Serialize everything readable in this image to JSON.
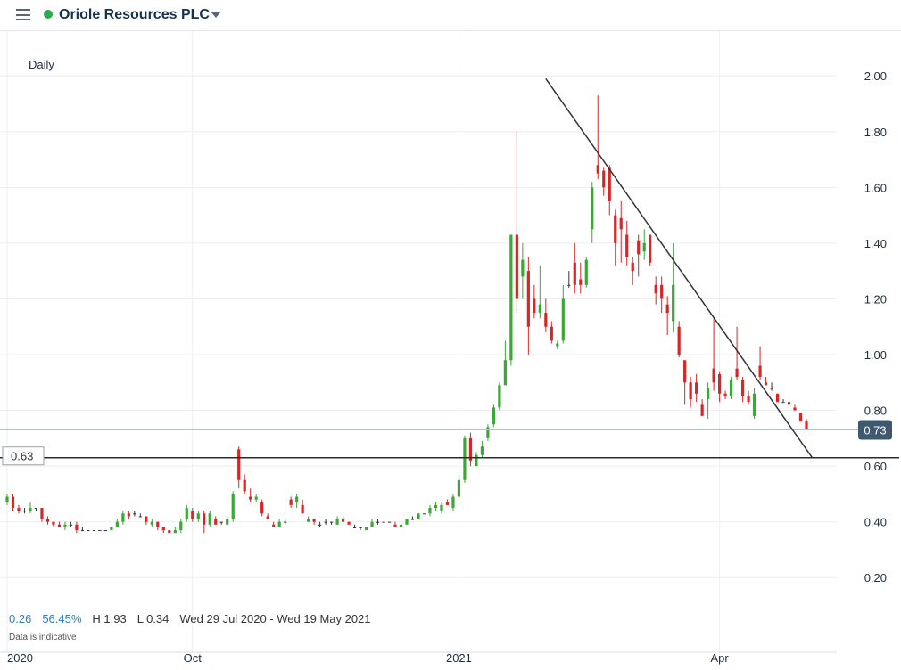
{
  "header": {
    "title": "Oriole Resources PLC",
    "menu_icon": "hamburger-menu-icon",
    "status_color": "#2fa84f"
  },
  "chart_meta": {
    "interval": "Daily"
  },
  "footer": {
    "change": "0.26",
    "change_pct": "56.45%",
    "high": "H 1.93",
    "low": "L 0.34",
    "range": "Wed 29 Jul 2020 - Wed 19 May 2021",
    "note": "Data is indicative"
  },
  "chart_data": {
    "type": "candlestick",
    "y_ticks": [
      "2.00",
      "1.80",
      "1.60",
      "1.40",
      "1.20",
      "1.00",
      "0.80",
      "0.60",
      "0.40",
      "0.20"
    ],
    "ylim": [
      0.13,
      2.15
    ],
    "x_labels": [
      {
        "label": "2020",
        "day": 0
      },
      {
        "label": "Oct",
        "day": 64
      },
      {
        "label": "2021",
        "day": 156
      },
      {
        "label": "Apr",
        "day": 246
      }
    ],
    "xlim": [
      0,
      305
    ],
    "current_price": {
      "label": "0.73",
      "value": 0.73
    },
    "horizontal_level": {
      "label": "0.63",
      "value": 0.63
    },
    "trendline": [
      [
        186,
        1.99
      ],
      [
        278,
        0.63
      ]
    ],
    "colors": {
      "up": "#3aa835",
      "down": "#d62728",
      "flat": "#333333",
      "price_tag": "#3f5870"
    },
    "candles": [
      [
        0,
        0.47,
        0.5,
        0.46,
        0.49
      ],
      [
        2,
        0.49,
        0.5,
        0.44,
        0.45
      ],
      [
        4,
        0.45,
        0.46,
        0.43,
        0.44
      ],
      [
        6,
        0.44,
        0.45,
        0.43,
        0.44
      ],
      [
        8,
        0.44,
        0.47,
        0.43,
        0.45
      ],
      [
        10,
        0.45,
        0.45,
        0.44,
        0.45
      ],
      [
        12,
        0.45,
        0.45,
        0.4,
        0.41
      ],
      [
        14,
        0.41,
        0.42,
        0.39,
        0.4
      ],
      [
        16,
        0.4,
        0.4,
        0.38,
        0.39
      ],
      [
        18,
        0.39,
        0.4,
        0.38,
        0.38
      ],
      [
        20,
        0.38,
        0.4,
        0.37,
        0.39
      ],
      [
        22,
        0.39,
        0.4,
        0.38,
        0.39
      ],
      [
        24,
        0.39,
        0.4,
        0.36,
        0.37
      ],
      [
        26,
        0.37,
        0.38,
        0.37,
        0.37
      ],
      [
        28,
        0.37,
        0.37,
        0.37,
        0.37
      ],
      [
        30,
        0.37,
        0.37,
        0.37,
        0.37
      ],
      [
        32,
        0.37,
        0.37,
        0.37,
        0.37
      ],
      [
        34,
        0.37,
        0.37,
        0.37,
        0.37
      ],
      [
        36,
        0.37,
        0.38,
        0.37,
        0.38
      ],
      [
        38,
        0.38,
        0.41,
        0.38,
        0.4
      ],
      [
        40,
        0.4,
        0.44,
        0.39,
        0.43
      ],
      [
        42,
        0.43,
        0.44,
        0.41,
        0.42
      ],
      [
        44,
        0.43,
        0.44,
        0.42,
        0.43
      ],
      [
        46,
        0.42,
        0.43,
        0.42,
        0.42
      ],
      [
        48,
        0.42,
        0.42,
        0.39,
        0.4
      ],
      [
        50,
        0.39,
        0.41,
        0.38,
        0.4
      ],
      [
        52,
        0.4,
        0.4,
        0.37,
        0.38
      ],
      [
        54,
        0.38,
        0.38,
        0.36,
        0.37
      ],
      [
        56,
        0.37,
        0.37,
        0.36,
        0.36
      ],
      [
        58,
        0.36,
        0.38,
        0.36,
        0.37
      ],
      [
        60,
        0.37,
        0.41,
        0.36,
        0.4
      ],
      [
        62,
        0.41,
        0.46,
        0.4,
        0.45
      ],
      [
        64,
        0.44,
        0.45,
        0.4,
        0.41
      ],
      [
        66,
        0.41,
        0.44,
        0.4,
        0.43
      ],
      [
        68,
        0.43,
        0.44,
        0.36,
        0.39
      ],
      [
        70,
        0.39,
        0.44,
        0.38,
        0.43
      ],
      [
        72,
        0.41,
        0.42,
        0.39,
        0.39
      ],
      [
        74,
        0.4,
        0.4,
        0.39,
        0.4
      ],
      [
        76,
        0.39,
        0.42,
        0.39,
        0.41
      ],
      [
        78,
        0.41,
        0.51,
        0.4,
        0.5
      ],
      [
        80,
        0.66,
        0.67,
        0.52,
        0.55
      ],
      [
        82,
        0.55,
        0.57,
        0.5,
        0.51
      ],
      [
        84,
        0.49,
        0.52,
        0.47,
        0.48
      ],
      [
        86,
        0.48,
        0.5,
        0.47,
        0.49
      ],
      [
        88,
        0.47,
        0.48,
        0.42,
        0.43
      ],
      [
        90,
        0.42,
        0.43,
        0.41,
        0.41
      ],
      [
        92,
        0.39,
        0.4,
        0.38,
        0.38
      ],
      [
        94,
        0.38,
        0.41,
        0.38,
        0.4
      ],
      [
        96,
        0.4,
        0.41,
        0.39,
        0.4
      ],
      [
        98,
        0.48,
        0.49,
        0.45,
        0.46
      ],
      [
        100,
        0.47,
        0.5,
        0.45,
        0.49
      ],
      [
        102,
        0.46,
        0.48,
        0.43,
        0.43
      ],
      [
        104,
        0.4,
        0.42,
        0.4,
        0.41
      ],
      [
        106,
        0.41,
        0.41,
        0.39,
        0.4
      ],
      [
        108,
        0.39,
        0.4,
        0.38,
        0.39
      ],
      [
        110,
        0.4,
        0.41,
        0.39,
        0.4
      ],
      [
        112,
        0.4,
        0.4,
        0.39,
        0.4
      ],
      [
        114,
        0.39,
        0.42,
        0.39,
        0.41
      ],
      [
        116,
        0.41,
        0.42,
        0.4,
        0.4
      ],
      [
        118,
        0.4,
        0.4,
        0.39,
        0.39
      ],
      [
        120,
        0.38,
        0.39,
        0.38,
        0.38
      ],
      [
        122,
        0.38,
        0.38,
        0.37,
        0.38
      ],
      [
        124,
        0.37,
        0.38,
        0.37,
        0.38
      ],
      [
        126,
        0.38,
        0.41,
        0.38,
        0.4
      ],
      [
        128,
        0.4,
        0.41,
        0.39,
        0.4
      ],
      [
        130,
        0.4,
        0.4,
        0.4,
        0.4
      ],
      [
        132,
        0.4,
        0.4,
        0.4,
        0.4
      ],
      [
        134,
        0.39,
        0.4,
        0.38,
        0.38
      ],
      [
        136,
        0.38,
        0.4,
        0.37,
        0.39
      ],
      [
        138,
        0.39,
        0.41,
        0.39,
        0.41
      ],
      [
        140,
        0.41,
        0.42,
        0.41,
        0.41
      ],
      [
        142,
        0.41,
        0.43,
        0.41,
        0.43
      ],
      [
        144,
        0.43,
        0.43,
        0.43,
        0.43
      ],
      [
        146,
        0.43,
        0.46,
        0.42,
        0.45
      ],
      [
        148,
        0.45,
        0.47,
        0.44,
        0.46
      ],
      [
        150,
        0.44,
        0.47,
        0.43,
        0.46
      ],
      [
        152,
        0.47,
        0.48,
        0.46,
        0.46
      ],
      [
        154,
        0.45,
        0.5,
        0.44,
        0.49
      ],
      [
        156,
        0.49,
        0.57,
        0.48,
        0.55
      ],
      [
        158,
        0.55,
        0.71,
        0.54,
        0.7
      ],
      [
        160,
        0.7,
        0.72,
        0.6,
        0.62
      ],
      [
        162,
        0.6,
        0.65,
        0.6,
        0.64
      ],
      [
        164,
        0.64,
        0.69,
        0.63,
        0.67
      ],
      [
        166,
        0.7,
        0.75,
        0.69,
        0.74
      ],
      [
        168,
        0.75,
        0.82,
        0.74,
        0.81
      ],
      [
        170,
        0.81,
        0.9,
        0.8,
        0.89
      ],
      [
        172,
        0.89,
        1.05,
        0.89,
        0.98
      ],
      [
        174,
        0.98,
        1.43,
        0.96,
        1.43
      ],
      [
        176,
        1.43,
        1.8,
        1.15,
        1.2
      ],
      [
        178,
        1.28,
        1.4,
        1.2,
        1.34
      ],
      [
        180,
        1.3,
        1.35,
        1.0,
        1.1
      ],
      [
        182,
        1.2,
        1.25,
        1.13,
        1.15
      ],
      [
        184,
        1.15,
        1.32,
        1.13,
        1.18
      ],
      [
        186,
        1.15,
        1.2,
        1.08,
        1.1
      ],
      [
        188,
        1.1,
        1.12,
        1.04,
        1.05
      ],
      [
        190,
        1.03,
        1.05,
        1.02,
        1.04
      ],
      [
        192,
        1.05,
        1.25,
        1.04,
        1.2
      ],
      [
        194,
        1.25,
        1.3,
        1.24,
        1.25
      ],
      [
        196,
        1.33,
        1.4,
        1.22,
        1.25
      ],
      [
        198,
        1.27,
        1.33,
        1.22,
        1.25
      ],
      [
        200,
        1.25,
        1.35,
        1.24,
        1.34
      ],
      [
        202,
        1.45,
        1.62,
        1.4,
        1.6
      ],
      [
        204,
        1.68,
        1.93,
        1.63,
        1.65
      ],
      [
        206,
        1.66,
        1.67,
        1.57,
        1.6
      ],
      [
        208,
        1.67,
        1.68,
        1.5,
        1.55
      ],
      [
        210,
        1.5,
        1.52,
        1.32,
        1.4
      ],
      [
        212,
        1.49,
        1.55,
        1.33,
        1.45
      ],
      [
        214,
        1.43,
        1.48,
        1.32,
        1.35
      ],
      [
        216,
        1.33,
        1.35,
        1.25,
        1.3
      ],
      [
        218,
        1.41,
        1.43,
        1.28,
        1.36
      ],
      [
        220,
        1.37,
        1.45,
        1.34,
        1.4
      ],
      [
        222,
        1.43,
        1.43,
        1.32,
        1.33
      ],
      [
        224,
        1.25,
        1.28,
        1.18,
        1.22
      ],
      [
        226,
        1.25,
        1.28,
        1.15,
        1.2
      ],
      [
        228,
        1.18,
        1.21,
        1.07,
        1.15
      ],
      [
        230,
        1.12,
        1.4,
        1.08,
        1.25
      ],
      [
        232,
        1.1,
        1.12,
        0.99,
        1.0
      ],
      [
        234,
        0.98,
        0.98,
        0.82,
        0.9
      ],
      [
        236,
        0.9,
        0.92,
        0.81,
        0.84
      ],
      [
        238,
        0.9,
        0.93,
        0.83,
        0.86
      ],
      [
        240,
        0.82,
        0.84,
        0.78,
        0.78
      ],
      [
        242,
        0.84,
        0.9,
        0.77,
        0.88
      ],
      [
        244,
        0.95,
        1.13,
        0.87,
        0.9
      ],
      [
        246,
        0.93,
        0.94,
        0.83,
        0.86
      ],
      [
        248,
        0.86,
        0.87,
        0.84,
        0.85
      ],
      [
        250,
        0.85,
        0.92,
        0.84,
        0.91
      ],
      [
        252,
        0.95,
        1.1,
        0.91,
        0.92
      ],
      [
        254,
        0.91,
        0.92,
        0.83,
        0.85
      ],
      [
        256,
        0.85,
        0.87,
        0.82,
        0.83
      ],
      [
        258,
        0.78,
        0.88,
        0.77,
        0.86
      ],
      [
        260,
        0.96,
        1.03,
        0.91,
        0.92
      ],
      [
        262,
        0.9,
        0.92,
        0.89,
        0.89
      ],
      [
        264,
        0.88,
        0.9,
        0.87,
        0.88
      ],
      [
        266,
        0.86,
        0.86,
        0.83,
        0.83
      ],
      [
        268,
        0.83,
        0.84,
        0.83,
        0.83
      ],
      [
        270,
        0.83,
        0.83,
        0.82,
        0.82
      ],
      [
        272,
        0.81,
        0.82,
        0.8,
        0.8
      ],
      [
        274,
        0.79,
        0.79,
        0.76,
        0.76
      ],
      [
        276,
        0.76,
        0.77,
        0.73,
        0.73
      ]
    ]
  }
}
